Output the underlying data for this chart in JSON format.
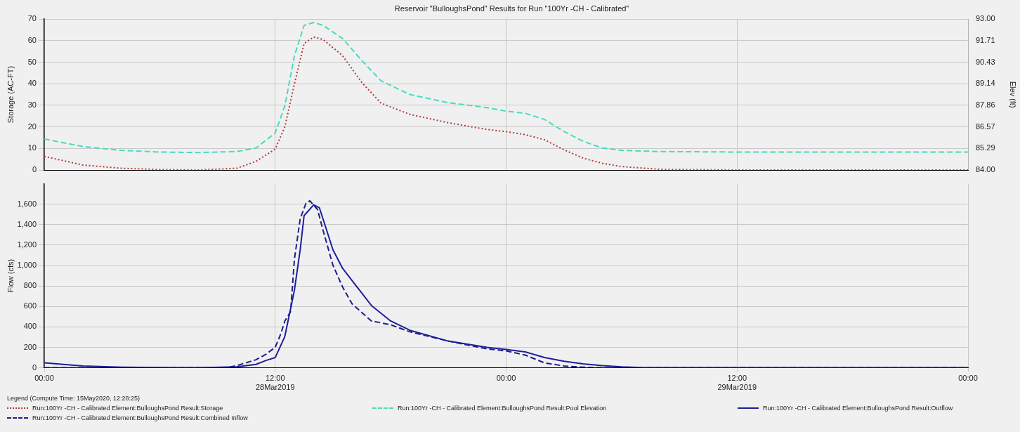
{
  "chart_data": [
    {
      "type": "line",
      "title": "Reservoir \"BulloughsPond\" Results for Run \"100Yr -CH - Calibrated\"",
      "ylabel": "Storage (AC-FT)",
      "y2label": "Elev (ft)",
      "xlim": [
        "2019-03-28T00:00",
        "2019-03-30T00:00"
      ],
      "xticks": [
        {
          "value": "2019-03-28T00:00",
          "label": null
        },
        {
          "value": "2019-03-28T12:00",
          "label": null
        },
        {
          "value": "2019-03-29T00:00",
          "label": null
        },
        {
          "value": "2019-03-29T12:00",
          "label": null
        },
        {
          "value": "2019-03-30T00:00",
          "label": null
        }
      ],
      "ylim": [
        0,
        70
      ],
      "yticks": [
        0,
        10,
        20,
        30,
        40,
        50,
        60,
        70
      ],
      "y2lim": [
        84,
        93
      ],
      "y2ticks": [
        {
          "value": 84,
          "label": "84.00"
        },
        {
          "value": 85.29,
          "label": "85.29"
        },
        {
          "value": 86.57,
          "label": "86.57"
        },
        {
          "value": 87.86,
          "label": "87.86"
        },
        {
          "value": 89.14,
          "label": "89.14"
        },
        {
          "value": 90.43,
          "label": "90.43"
        },
        {
          "value": 91.71,
          "label": "91.71"
        },
        {
          "value": 93,
          "label": "93.00"
        }
      ],
      "tick_labels": "y",
      "grid": true,
      "legend": "bottom",
      "marker": "none",
      "series": [
        {
          "name": "Run:100Yr -CH - Calibrated Element:BulloughsPond Result:Storage",
          "color": "#b03a3a",
          "line_style": "dotted",
          "x": [
            "2019-03-28T00:00",
            "2019-03-28T02:00",
            "2019-03-28T04:00",
            "2019-03-28T06:00",
            "2019-03-28T08:00",
            "2019-03-28T10:00",
            "2019-03-28T11:00",
            "2019-03-28T12:00",
            "2019-03-28T12:30",
            "2019-03-28T13:00",
            "2019-03-28T13:30",
            "2019-03-28T14:00",
            "2019-03-28T14:30",
            "2019-03-28T15:30",
            "2019-03-28T16:30",
            "2019-03-28T17:30",
            "2019-03-28T19:00",
            "2019-03-28T21:00",
            "2019-03-28T23:00",
            "2019-03-29T00:00",
            "2019-03-29T01:00",
            "2019-03-29T02:00",
            "2019-03-29T03:00",
            "2019-03-29T04:00",
            "2019-03-29T05:00",
            "2019-03-29T06:00",
            "2019-03-29T08:00",
            "2019-03-29T12:00",
            "2019-03-29T16:00",
            "2019-03-29T20:00",
            "2019-03-30T00:00"
          ],
          "values": [
            6.3,
            2.3,
            0.8,
            0.2,
            0,
            0.8,
            4,
            9.7,
            20,
            40,
            58.6,
            61.7,
            60.5,
            53,
            40.6,
            31,
            25.8,
            21.9,
            18.8,
            17.8,
            16.4,
            14,
            9.4,
            5.5,
            3.1,
            1.6,
            0.3,
            0,
            0,
            0,
            0
          ]
        },
        {
          "name": "Run:100Yr -CH - Calibrated Element:BulloughsPond Result:Pool Elevation",
          "color": "#48dcc0",
          "line_style": "dashed",
          "axis": "y2",
          "x": [
            "2019-03-28T00:00",
            "2019-03-28T02:00",
            "2019-03-28T04:00",
            "2019-03-28T06:00",
            "2019-03-28T08:00",
            "2019-03-28T10:00",
            "2019-03-28T11:00",
            "2019-03-28T12:00",
            "2019-03-28T12:30",
            "2019-03-28T13:00",
            "2019-03-28T13:30",
            "2019-03-28T14:00",
            "2019-03-28T14:30",
            "2019-03-28T15:30",
            "2019-03-28T16:30",
            "2019-03-28T17:30",
            "2019-03-28T19:00",
            "2019-03-28T21:00",
            "2019-03-28T23:00",
            "2019-03-29T00:00",
            "2019-03-29T01:00",
            "2019-03-29T02:00",
            "2019-03-29T03:00",
            "2019-03-29T04:00",
            "2019-03-29T05:00",
            "2019-03-29T06:00",
            "2019-03-29T08:00",
            "2019-03-29T12:00",
            "2019-03-29T16:00",
            "2019-03-29T20:00",
            "2019-03-30T00:00"
          ],
          "values": [
            85.85,
            85.4,
            85.17,
            85.07,
            85.04,
            85.1,
            85.31,
            86.21,
            87.82,
            90.82,
            92.62,
            92.8,
            92.62,
            91.84,
            90.53,
            89.32,
            88.5,
            88.01,
            87.72,
            87.51,
            87.38,
            87.01,
            86.3,
            85.71,
            85.31,
            85.17,
            85.1,
            85.07,
            85.07,
            85.07,
            85.07
          ]
        }
      ]
    },
    {
      "type": "line",
      "ylabel": "Flow (cfs)",
      "legend_title": "Legend (Compute Time: 15May2020, 12:28:25)",
      "xlim": [
        "2019-03-28T00:00",
        "2019-03-30T00:00"
      ],
      "xticks": [
        {
          "value": "2019-03-28T00:00",
          "label": "00:00"
        },
        {
          "value": "2019-03-28T12:00",
          "label": "12:00\n28Mar2019"
        },
        {
          "value": "2019-03-29T00:00",
          "label": "00:00"
        },
        {
          "value": "2019-03-29T12:00",
          "label": "12:00\n29Mar2019"
        },
        {
          "value": "2019-03-30T00:00",
          "label": "00:00"
        }
      ],
      "ylim": [
        0,
        1800
      ],
      "yticks": [
        {
          "value": 0,
          "label": "0"
        },
        {
          "value": 200,
          "label": "200"
        },
        {
          "value": 400,
          "label": "400"
        },
        {
          "value": 600,
          "label": "600"
        },
        {
          "value": 800,
          "label": "800"
        },
        {
          "value": 1000,
          "label": "1,000"
        },
        {
          "value": 1200,
          "label": "1,200"
        },
        {
          "value": 1400,
          "label": "1,400"
        },
        {
          "value": 1600,
          "label": "1,600"
        }
      ],
      "grid": true,
      "legend": "bottom",
      "marker": "none",
      "series": [
        {
          "name": "Run:100Yr -CH - Calibrated Element:BulloughsPond Result:Outflow",
          "color": "#1e1e9c",
          "line_style": "solid",
          "x": [
            "2019-03-28T00:00",
            "2019-03-28T02:00",
            "2019-03-28T04:00",
            "2019-03-28T06:00",
            "2019-03-28T08:00",
            "2019-03-28T10:00",
            "2019-03-28T11:00",
            "2019-03-28T11:30",
            "2019-03-28T12:00",
            "2019-03-28T12:30",
            "2019-03-28T13:00",
            "2019-03-28T13:18",
            "2019-03-28T13:30",
            "2019-03-28T14:00",
            "2019-03-28T14:18",
            "2019-03-28T15:00",
            "2019-03-28T15:30",
            "2019-03-28T16:00",
            "2019-03-28T17:00",
            "2019-03-28T18:00",
            "2019-03-28T19:00",
            "2019-03-28T21:00",
            "2019-03-28T23:00",
            "2019-03-29T00:00",
            "2019-03-29T01:00",
            "2019-03-29T02:00",
            "2019-03-29T03:00",
            "2019-03-29T04:00",
            "2019-03-29T05:00",
            "2019-03-29T06:00",
            "2019-03-29T07:00",
            "2019-03-29T12:00",
            "2019-03-29T18:00",
            "2019-03-30T00:00"
          ],
          "values": [
            48,
            18,
            6,
            2,
            1,
            9,
            33,
            70,
            100,
            306,
            760,
            1155,
            1488,
            1594,
            1564,
            1155,
            973,
            852,
            609,
            458,
            367,
            261,
            200,
            180,
            155,
            100,
            64,
            39,
            21,
            9,
            3,
            0,
            0,
            0
          ]
        },
        {
          "name": "Run:100Yr -CH - Calibrated Element:BulloughsPond Result:Combined Inflow",
          "color": "#1e1e8c",
          "line_style": "dashed",
          "x": [
            "2019-03-28T00:00",
            "2019-03-28T04:00",
            "2019-03-28T08:00",
            "2019-03-28T09:30",
            "2019-03-28T10:00",
            "2019-03-28T11:00",
            "2019-03-28T11:30",
            "2019-03-28T12:00",
            "2019-03-28T12:18",
            "2019-03-28T12:30",
            "2019-03-28T12:48",
            "2019-03-28T13:00",
            "2019-03-28T13:18",
            "2019-03-28T13:36",
            "2019-03-28T13:48",
            "2019-03-28T14:12",
            "2019-03-28T14:30",
            "2019-03-28T15:00",
            "2019-03-28T15:30",
            "2019-03-28T16:00",
            "2019-03-28T17:00",
            "2019-03-28T18:00",
            "2019-03-28T19:00",
            "2019-03-28T21:00",
            "2019-03-28T23:00",
            "2019-03-29T00:00",
            "2019-03-29T01:00",
            "2019-03-29T02:00",
            "2019-03-29T03:00",
            "2019-03-29T04:00",
            "2019-03-29T05:00",
            "2019-03-29T12:00",
            "2019-03-29T18:00",
            "2019-03-30T00:00"
          ],
          "values": [
            0,
            0,
            0,
            2,
            21,
            79,
            130,
            200,
            336,
            458,
            548,
            1064,
            1458,
            1609,
            1633,
            1548,
            1336,
            1003,
            791,
            624,
            458,
            421,
            352,
            261,
            185,
            165,
            124,
            48,
            18,
            6,
            0,
            0,
            0,
            0
          ]
        }
      ]
    }
  ]
}
